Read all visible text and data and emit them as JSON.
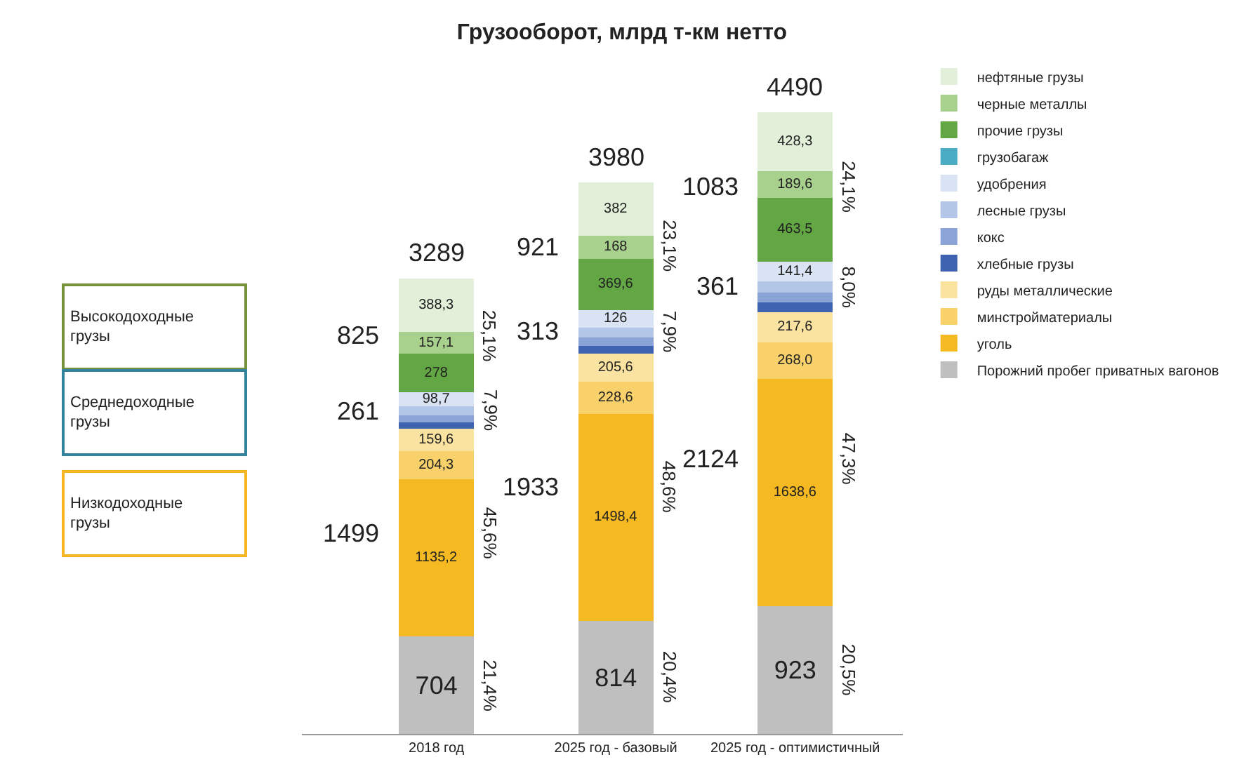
{
  "chart_data": {
    "type": "bar",
    "stacked": true,
    "title": "Грузооборот, млрд т-км нетто",
    "categories": [
      "2018 год",
      "2025 год - базовый",
      "2025 год - оптимистичный"
    ],
    "series": [
      {
        "name": "Порожний пробег приватных вагонов",
        "color": "#bfbfbf",
        "values": [
          704,
          814,
          923
        ],
        "value_labels": [
          "704",
          "814",
          "923"
        ]
      },
      {
        "name": "уголь",
        "color": "#f5b922",
        "values": [
          1135.2,
          1498.4,
          1638.6
        ],
        "value_labels": [
          "1135,2",
          "1498,4",
          "1638,6"
        ]
      },
      {
        "name": "минстройматериалы",
        "color": "#f8d16a",
        "values": [
          204.3,
          228.6,
          268.0
        ],
        "value_labels": [
          "204,3",
          "228,6",
          "268,0"
        ]
      },
      {
        "name": "руды металлические",
        "color": "#fae3a0",
        "values": [
          159.6,
          205.6,
          217.6
        ],
        "value_labels": [
          "159,6",
          "205,6",
          "217,6"
        ]
      },
      {
        "name": "хлебные грузы",
        "color": "#3f63b0",
        "values": [
          45,
          55,
          70
        ],
        "value_labels": [
          null,
          null,
          null
        ]
      },
      {
        "name": "кокс",
        "color": "#8ba4d8",
        "values": [
          50,
          60,
          70
        ],
        "value_labels": [
          null,
          null,
          null
        ]
      },
      {
        "name": "лесные грузы",
        "color": "#b4c6e7",
        "values": [
          69,
          73,
          80
        ],
        "value_labels": [
          null,
          null,
          null
        ]
      },
      {
        "name": "удобрения",
        "color": "#dae3f3",
        "values": [
          98.7,
          126,
          141.4
        ],
        "value_labels": [
          "98,7",
          "126",
          "141,4"
        ]
      },
      {
        "name": "грузобагаж",
        "color": "#4bacc6",
        "values": [
          null,
          null,
          null
        ],
        "value_labels": [
          null,
          null,
          null
        ]
      },
      {
        "name": "прочие грузы",
        "color": "#62a744",
        "values": [
          278,
          369.6,
          463.5
        ],
        "value_labels": [
          "278",
          "369,6",
          "463,5"
        ]
      },
      {
        "name": "черные металлы",
        "color": "#a9d18e",
        "values": [
          157.1,
          168,
          189.6
        ],
        "value_labels": [
          "157,1",
          "168",
          "189,6"
        ]
      },
      {
        "name": "нефтяные грузы",
        "color": "#e2f0d9",
        "values": [
          388.3,
          382,
          428.3
        ],
        "value_labels": [
          "388,3",
          "382",
          "428,3"
        ]
      }
    ],
    "totals": [
      "3289",
      "3980",
      "4490"
    ],
    "legend": "right",
    "annotations": [
      "Высокодоходные грузы",
      "Среднедоходные грузы",
      "Низкодоходные грузы",
      "21,4%",
      "1499",
      "45,6%",
      "261",
      "7,9%",
      "825",
      "25,1%",
      "20,4%",
      "1933",
      "48,6%",
      "313",
      "7,9%",
      "921",
      "23,1%",
      "20,5%",
      "2124",
      "47,3%",
      "361",
      "8,0%",
      "1083",
      "24,1%"
    ]
  }
}
